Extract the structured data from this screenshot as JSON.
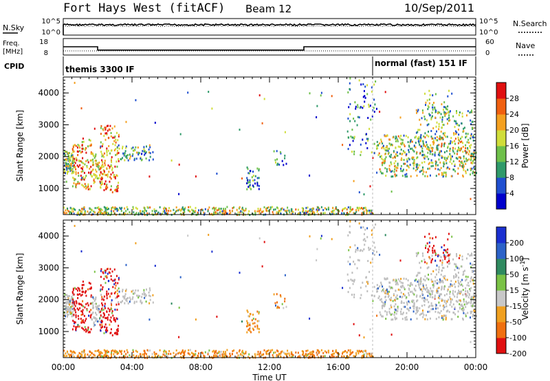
{
  "header": {
    "title": "Fort Hays West (fitACF)",
    "beam": "Beam 12",
    "date": "10/Sep/2011"
  },
  "colors": {
    "power_scale": [
      "#0000cc",
      "#1f4fd0",
      "#2f9a6a",
      "#6ec04a",
      "#d0dd3a",
      "#f4a020",
      "#f06010",
      "#e01010"
    ],
    "velocity_scale": [
      "#1a2fd0",
      "#2c62c8",
      "#2f8a60",
      "#7ac246",
      "#c8c8c8",
      "#f0a020",
      "#f07010",
      "#e01010"
    ],
    "ground_scatter": "#bebebe"
  },
  "chart_data": [
    {
      "type": "line",
      "panel": "noise",
      "left_label": "N.Sky",
      "right_label": "N.Search",
      "left_ticks": [
        "10^5",
        "10^0"
      ],
      "right_ticks": [
        "10^5",
        "10^0"
      ],
      "x_range_hours": [
        0,
        24
      ]
    },
    {
      "type": "line",
      "panel": "frequency",
      "left_label_top": "Freq.",
      "left_label_bottom": "[MHz]",
      "right_label": "Nave",
      "left_ticks": [
        18,
        8
      ],
      "right_ticks": [
        60,
        0
      ],
      "ylim": [
        8,
        18
      ],
      "frequency_steps": [
        {
          "x0": 0.0,
          "x1": 2.0,
          "freq": 13.0
        },
        {
          "x0": 2.0,
          "x1": 14.0,
          "freq": 11.0
        },
        {
          "x0": 14.0,
          "x1": 24.0,
          "freq": 13.0
        }
      ]
    },
    {
      "type": "table",
      "panel": "cpid",
      "label": "CPID",
      "segments": [
        {
          "start": 0.0,
          "end": 18.0,
          "name": "themis 3300 IF"
        },
        {
          "start": 18.0,
          "end": 24.0,
          "name": "normal (fast) 151 IF"
        }
      ]
    },
    {
      "type": "heatmap",
      "panel": "power",
      "ylabel": "Slant Range [km]",
      "xlabel": "Time UT",
      "x_ticks": [
        "00:00",
        "04:00",
        "08:00",
        "12:00",
        "16:00",
        "20:00",
        "00:00"
      ],
      "y_ticks": [
        1000,
        2000,
        3000,
        4000
      ],
      "ylim": [
        180,
        4500
      ],
      "colorbar_label": "Power [dB]",
      "colorbar_ticks": [
        4,
        8,
        12,
        16,
        20,
        24,
        28
      ],
      "colorbar_range": [
        0,
        30
      ]
    },
    {
      "type": "heatmap",
      "panel": "velocity",
      "ylabel": "Slant Range [km]",
      "xlabel": "Time UT",
      "x_ticks": [
        "00:00",
        "04:00",
        "08:00",
        "12:00",
        "16:00",
        "20:00",
        "00:00"
      ],
      "y_ticks": [
        1000,
        2000,
        3000,
        4000
      ],
      "ylim": [
        180,
        4500
      ],
      "colorbar_label_main": "Velocity [m s",
      "colorbar_label_exp": "-1",
      "colorbar_label_end": "]",
      "colorbar_ticks": [
        "200",
        "100",
        "50",
        "15",
        "-15",
        "-50",
        "-100",
        "-200"
      ]
    }
  ]
}
